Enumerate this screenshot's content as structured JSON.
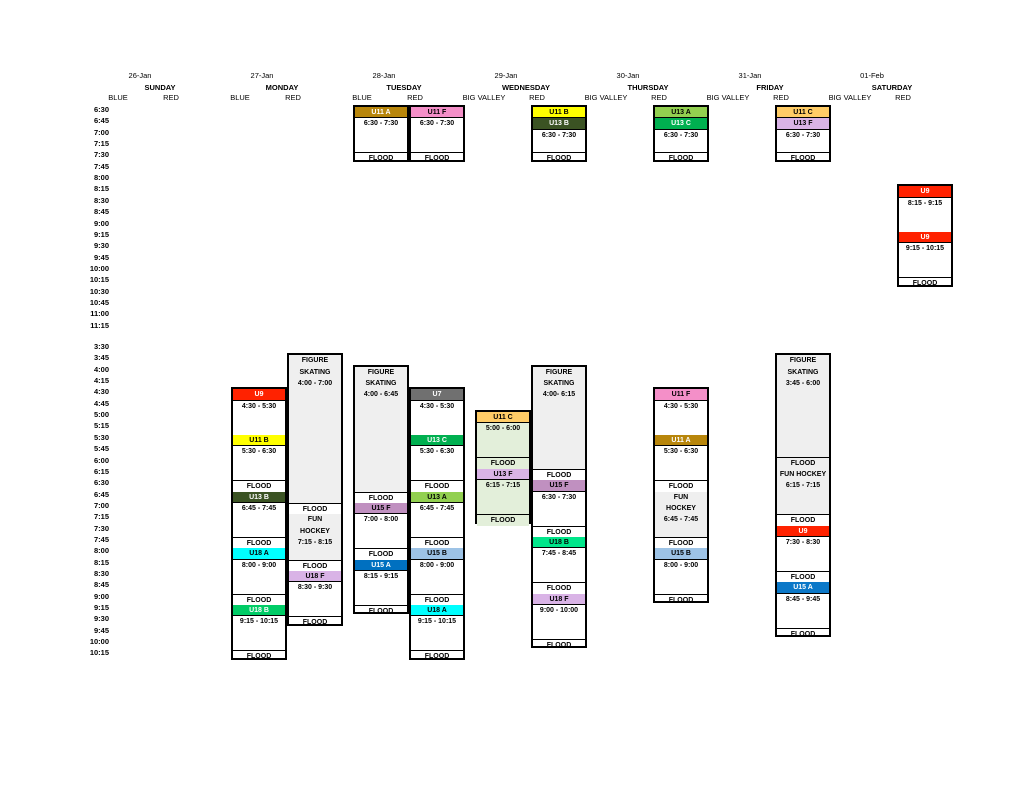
{
  "days": [
    {
      "date": "26-Jan",
      "name": "SUNDAY",
      "rinks": [
        "BLUE",
        "RED"
      ]
    },
    {
      "date": "27-Jan",
      "name": "MONDAY",
      "rinks": [
        "BLUE",
        "RED"
      ]
    },
    {
      "date": "28-Jan",
      "name": "TUESDAY",
      "rinks": [
        "BLUE",
        "RED"
      ]
    },
    {
      "date": "29-Jan",
      "name": "WEDNESDAY",
      "rinks": [
        "BIG VALLEY",
        "RED"
      ]
    },
    {
      "date": "30-Jan",
      "name": "THURSDAY",
      "rinks": [
        "BIG VALLEY",
        "RED"
      ]
    },
    {
      "date": "31-Jan",
      "name": "FRIDAY",
      "rinks": [
        "BIG VALLEY",
        "RED"
      ]
    },
    {
      "date": "01-Feb",
      "name": "SATURDAY",
      "rinks": [
        "BIG VALLEY",
        "RED"
      ]
    }
  ],
  "morning_times": [
    "6:30",
    "6:45",
    "7:00",
    "7:15",
    "7:30",
    "7:45",
    "8:00",
    "8:15",
    "8:30",
    "8:45",
    "9:00",
    "9:15",
    "9:30",
    "9:45",
    "10:00",
    "10:15",
    "10:30",
    "10:45",
    "11:00",
    "11:15"
  ],
  "afternoon_times": [
    "3:30",
    "3:45",
    "4:00",
    "4:15",
    "4:30",
    "4:45",
    "5:00",
    "5:15",
    "5:30",
    "5:45",
    "6:00",
    "6:15",
    "6:30",
    "6:45",
    "7:00",
    "7:15",
    "7:30",
    "7:45",
    "8:00",
    "8:15",
    "8:30",
    "8:45",
    "9:00",
    "9:15",
    "9:30",
    "9:45",
    "10:00",
    "10:15"
  ],
  "colors": {
    "dark_gold": "#b8860b",
    "pink": "#f48fc8",
    "yellow": "#ffff00",
    "dark_olive": "#3b5323",
    "light_green": "#92d050",
    "green": "#00b050",
    "light_orange": "#ffcc66",
    "lavender": "#d9b3e6",
    "red": "#ff2200",
    "gray_fill": "#efefef",
    "dark_gray": "#707070",
    "sea_green": "#00cc66",
    "pale_green": "#e3efda",
    "mauve": "#c090c0",
    "aqua": "#00ffff",
    "steel_blue": "#9dc3e6",
    "royal_blue": "#0070c0",
    "spring_green": "#00e68a",
    "medium_blue": "#0b78c8"
  },
  "bookings": [
    {
      "day": 2,
      "rink": 0,
      "section": "am",
      "start": 0,
      "end": 5,
      "cells": [
        {
          "r": 0,
          "t": "U11 A",
          "bg": "#b8860b",
          "team": true
        },
        {
          "r": 1,
          "t": "6:30 - 7:30"
        },
        {
          "r": 4,
          "t": "FLOOD",
          "flood": true
        }
      ]
    },
    {
      "day": 2,
      "rink": 1,
      "section": "am",
      "start": 0,
      "end": 5,
      "cells": [
        {
          "r": 0,
          "t": "U11 F",
          "bg": "#f48fc8",
          "team": true
        },
        {
          "r": 1,
          "t": "6:30 - 7:30"
        },
        {
          "r": 4,
          "t": "FLOOD",
          "flood": true
        }
      ]
    },
    {
      "day": 3,
      "rink": 1,
      "section": "am",
      "start": 0,
      "end": 5,
      "cells": [
        {
          "r": 0,
          "t": "U11 B",
          "bg": "#ffff00",
          "team": true
        },
        {
          "r": 1,
          "t": "U13 B",
          "bg": "#3b5323",
          "team": true
        },
        {
          "r": 2,
          "t": "6:30 - 7:30"
        },
        {
          "r": 4,
          "t": "FLOOD",
          "flood": true
        }
      ]
    },
    {
      "day": 4,
      "rink": 1,
      "section": "am",
      "start": 0,
      "end": 5,
      "cells": [
        {
          "r": 0,
          "t": "U13 A",
          "bg": "#92d050",
          "team": true
        },
        {
          "r": 1,
          "t": "U13 C",
          "bg": "#00b050",
          "team": true
        },
        {
          "r": 2,
          "t": "6:30 - 7:30"
        },
        {
          "r": 4,
          "t": "FLOOD",
          "flood": true
        }
      ]
    },
    {
      "day": 5,
      "rink": 1,
      "section": "am",
      "start": 0,
      "end": 5,
      "cells": [
        {
          "r": 0,
          "t": "U11 C",
          "bg": "#ffcc66",
          "team": true
        },
        {
          "r": 1,
          "t": "U13 F",
          "bg": "#d9b3e6",
          "team": true
        },
        {
          "r": 2,
          "t": "6:30 - 7:30"
        },
        {
          "r": 4,
          "t": "FLOOD",
          "flood": true
        }
      ]
    },
    {
      "day": 6,
      "rink": 1,
      "section": "am",
      "start": 7,
      "end": 16,
      "cells": [
        {
          "r": 7,
          "t": "U9",
          "bg": "#ff2200",
          "team": true
        },
        {
          "r": 8,
          "t": "8:15 - 9:15"
        },
        {
          "r": 11,
          "t": "U9",
          "bg": "#ff2200",
          "team": true
        },
        {
          "r": 12,
          "t": "9:15 - 10:15"
        },
        {
          "r": 15,
          "t": "FLOOD",
          "flood": true
        }
      ]
    },
    {
      "day": 1,
      "rink": 0,
      "section": "pm",
      "start": 4,
      "end": 28,
      "cells": [
        {
          "r": 4,
          "t": "U9",
          "bg": "#ff2200",
          "team": true
        },
        {
          "r": 5,
          "t": "4:30 - 5:30"
        },
        {
          "r": 8,
          "t": "U11 B",
          "bg": "#ffff00",
          "team": true
        },
        {
          "r": 9,
          "t": "5:30 - 6:30"
        },
        {
          "r": 12,
          "t": "FLOOD",
          "flood": true
        },
        {
          "r": 13,
          "t": "U13 B",
          "bg": "#3b5323",
          "team": true
        },
        {
          "r": 14,
          "t": "6:45 - 7:45"
        },
        {
          "r": 17,
          "t": "FLOOD",
          "flood": true
        },
        {
          "r": 18,
          "t": "U18 A",
          "bg": "#00ffff",
          "team": true
        },
        {
          "r": 19,
          "t": "8:00 - 9:00"
        },
        {
          "r": 22,
          "t": "FLOOD",
          "flood": true
        },
        {
          "r": 23,
          "t": "U18 B",
          "bg": "#00cc66",
          "team": true
        },
        {
          "r": 24,
          "t": "9:15 - 10:15"
        },
        {
          "r": 27,
          "t": "FLOOD",
          "flood": true
        }
      ]
    },
    {
      "day": 1,
      "rink": 1,
      "section": "pm",
      "start": 1,
      "end": 25,
      "cells": [
        {
          "r": 1,
          "bg": "#efefef",
          "span": 13
        },
        {
          "r": 1,
          "t": "FIGURE"
        },
        {
          "r": 2,
          "t": "SKATING"
        },
        {
          "r": 3,
          "t": "4:00 - 7:00"
        },
        {
          "r": 14,
          "t": "FLOOD",
          "flood": true
        },
        {
          "r": 15,
          "bg": "#efefef",
          "span": 4
        },
        {
          "r": 15,
          "t": "FUN"
        },
        {
          "r": 16,
          "t": "HOCKEY"
        },
        {
          "r": 17,
          "t": "7:15 - 8:15"
        },
        {
          "r": 19,
          "t": "FLOOD",
          "flood": true
        },
        {
          "r": 20,
          "t": "U18 F",
          "bg": "#d9b3e6",
          "team": true
        },
        {
          "r": 21,
          "t": "8:30 - 9:30"
        },
        {
          "r": 24,
          "t": "FLOOD",
          "flood": true
        }
      ]
    },
    {
      "day": 2,
      "rink": 0,
      "section": "pm",
      "start": 2,
      "end": 24,
      "cells": [
        {
          "r": 2,
          "bg": "#efefef",
          "span": 11
        },
        {
          "r": 2,
          "t": "FIGURE"
        },
        {
          "r": 3,
          "t": "SKATING"
        },
        {
          "r": 4,
          "t": "4:00 - 6:45"
        },
        {
          "r": 13,
          "t": "FLOOD",
          "flood": true
        },
        {
          "r": 14,
          "t": "U15 F",
          "bg": "#c090c0",
          "team": true
        },
        {
          "r": 15,
          "t": "7:00 - 8:00"
        },
        {
          "r": 18,
          "t": "FLOOD",
          "flood": true
        },
        {
          "r": 19,
          "t": "U15 A",
          "bg": "#0070c0",
          "team": true
        },
        {
          "r": 20,
          "t": "8:15 - 9:15"
        },
        {
          "r": 23,
          "t": "FLOOD",
          "flood": true
        }
      ]
    },
    {
      "day": 2,
      "rink": 1,
      "section": "pm",
      "start": 4,
      "end": 28,
      "cells": [
        {
          "r": 4,
          "t": "U7",
          "bg": "#707070",
          "team": true
        },
        {
          "r": 5,
          "t": "4:30 - 5:30"
        },
        {
          "r": 8,
          "t": "U13 C",
          "bg": "#00b050",
          "team": true
        },
        {
          "r": 9,
          "t": "5:30 - 6:30"
        },
        {
          "r": 12,
          "t": "FLOOD",
          "flood": true
        },
        {
          "r": 13,
          "t": "U13 A",
          "bg": "#92d050",
          "team": true
        },
        {
          "r": 14,
          "t": "6:45 - 7:45"
        },
        {
          "r": 17,
          "t": "FLOOD",
          "flood": true
        },
        {
          "r": 18,
          "t": "U15 B",
          "bg": "#9dc3e6",
          "team": true
        },
        {
          "r": 19,
          "t": "8:00 - 9:00"
        },
        {
          "r": 22,
          "t": "FLOOD",
          "flood": true
        },
        {
          "r": 23,
          "t": "U18 A",
          "bg": "#00ffff",
          "team": true
        },
        {
          "r": 24,
          "t": "9:15 - 10:15"
        },
        {
          "r": 27,
          "t": "FLOOD",
          "flood": true
        }
      ]
    },
    {
      "day": 3,
      "rink": 0,
      "section": "pm",
      "start": 6,
      "end": 16,
      "cells": [
        {
          "r": 6,
          "t": "U11 C",
          "bg": "#ffcc66",
          "team": true
        },
        {
          "r": 7,
          "bg": "#e3efda",
          "span": 9
        },
        {
          "r": 7,
          "t": "5:00 - 6:00"
        },
        {
          "r": 10,
          "t": "FLOOD",
          "flood": true
        },
        {
          "r": 11,
          "t": "U13 F",
          "bg": "#d9b3e6",
          "team": true
        },
        {
          "r": 12,
          "t": "6:15 - 7:15"
        },
        {
          "r": 15,
          "t": "FLOOD",
          "flood": true
        }
      ]
    },
    {
      "day": 3,
      "rink": 1,
      "section": "pm",
      "start": 2,
      "end": 27,
      "cells": [
        {
          "r": 2,
          "bg": "#efefef",
          "span": 9
        },
        {
          "r": 2,
          "t": "FIGURE"
        },
        {
          "r": 3,
          "t": "SKATING"
        },
        {
          "r": 4,
          "t": "4:00- 6:15"
        },
        {
          "r": 11,
          "t": "FLOOD",
          "flood": true
        },
        {
          "r": 12,
          "t": "U15 F",
          "bg": "#c090c0",
          "team": true
        },
        {
          "r": 13,
          "t": "6:30 - 7:30"
        },
        {
          "r": 16,
          "t": "FLOOD",
          "flood": true
        },
        {
          "r": 17,
          "t": "U18 B",
          "bg": "#00e68a",
          "team": true
        },
        {
          "r": 18,
          "t": "7:45 - 8:45"
        },
        {
          "r": 21,
          "t": "FLOOD",
          "flood": true
        },
        {
          "r": 22,
          "t": "U18 F",
          "bg": "#d9b3e6",
          "team": true
        },
        {
          "r": 23,
          "t": "9:00 - 10:00"
        },
        {
          "r": 26,
          "t": "FLOOD",
          "flood": true
        }
      ]
    },
    {
      "day": 4,
      "rink": 1,
      "section": "pm",
      "start": 4,
      "end": 23,
      "cells": [
        {
          "r": 4,
          "t": "U11 F",
          "bg": "#f48fc8",
          "team": true
        },
        {
          "r": 5,
          "t": "4:30 - 5:30"
        },
        {
          "r": 8,
          "t": "U11 A",
          "bg": "#b8860b",
          "team": true
        },
        {
          "r": 9,
          "t": "5:30 - 6:30"
        },
        {
          "r": 12,
          "t": "FLOOD",
          "flood": true
        },
        {
          "r": 13,
          "bg": "#efefef",
          "span": 4
        },
        {
          "r": 13,
          "t": "FUN"
        },
        {
          "r": 14,
          "t": "HOCKEY"
        },
        {
          "r": 15,
          "t": "6:45 - 7:45"
        },
        {
          "r": 17,
          "t": "FLOOD",
          "flood": true
        },
        {
          "r": 18,
          "t": "U15 B",
          "bg": "#9dc3e6",
          "team": true
        },
        {
          "r": 19,
          "t": "8:00 - 9:00"
        },
        {
          "r": 22,
          "t": "FLOOD",
          "flood": true
        }
      ]
    },
    {
      "day": 5,
      "rink": 1,
      "section": "pm",
      "start": 1,
      "end": 26,
      "cells": [
        {
          "r": 1,
          "bg": "#efefef",
          "span": 10
        },
        {
          "r": 1,
          "t": "FIGURE"
        },
        {
          "r": 2,
          "t": "SKATING"
        },
        {
          "r": 3,
          "t": "3:45 - 6:00"
        },
        {
          "r": 10,
          "t": "FLOOD",
          "flood": true
        },
        {
          "r": 11,
          "bg": "#efefef",
          "span": 4
        },
        {
          "r": 11,
          "t": "FUN HOCKEY"
        },
        {
          "r": 12,
          "t": "6:15 - 7:15"
        },
        {
          "r": 15,
          "t": "FLOOD",
          "flood": true
        },
        {
          "r": 16,
          "t": "U9",
          "bg": "#ff2200",
          "team": true
        },
        {
          "r": 17,
          "t": "7:30 - 8:30"
        },
        {
          "r": 20,
          "t": "FLOOD",
          "flood": true
        },
        {
          "r": 21,
          "t": "U15 A",
          "bg": "#0b78c8",
          "team": true
        },
        {
          "r": 22,
          "t": "8:45 - 9:45"
        },
        {
          "r": 25,
          "t": "FLOOD",
          "flood": true
        }
      ]
    }
  ]
}
